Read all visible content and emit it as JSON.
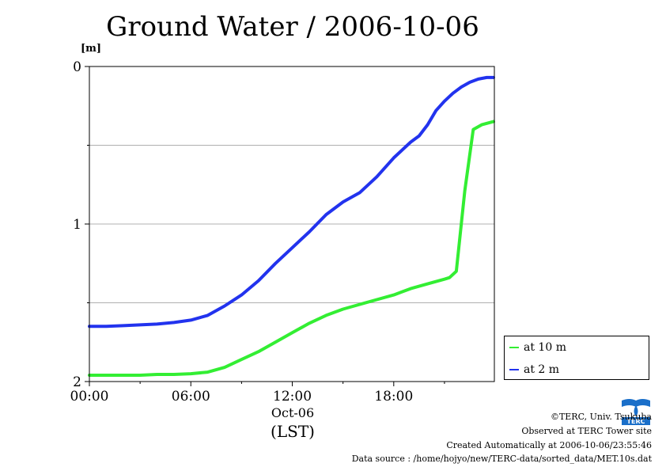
{
  "title": "Ground Water / 2006-10-06",
  "unit_label": "[m]",
  "x_date_label": "Oct-06",
  "x_tz_label": "(LST)",
  "footer": {
    "copyright": "©TERC, Univ. Tsukuba",
    "observed": "Observed at TERC Tower site",
    "created": "Created Automatically at 2006-10-06/23:55:46",
    "source": "Data source : /home/hojyo/new/TERC-data/sorted_data/MET.10s.dat"
  },
  "logo_text": "TERC",
  "chart_data": {
    "type": "line",
    "title": "Ground Water / 2006-10-06",
    "ylabel": "[m]",
    "xlabel": "(LST)",
    "xlim": [
      0,
      23.95
    ],
    "ylim": [
      2,
      0
    ],
    "y_inverted": true,
    "grid": true,
    "legend_position": "right",
    "x_ticks": [
      "00:00",
      "06:00",
      "12:00",
      "18:00"
    ],
    "y_ticks": [
      "0",
      "1",
      "2"
    ],
    "series": [
      {
        "name": "at 10 m",
        "color": "#33ee33",
        "x": [
          0,
          1,
          2,
          3,
          4,
          5,
          6,
          7,
          8,
          9,
          10,
          11,
          12,
          13,
          14,
          15,
          16,
          17,
          18,
          19,
          20,
          21,
          21.3,
          21.7,
          22.2,
          22.7,
          23.2,
          23.9
        ],
        "y": [
          1.96,
          1.96,
          1.96,
          1.96,
          1.955,
          1.955,
          1.95,
          1.94,
          1.91,
          1.86,
          1.81,
          1.75,
          1.69,
          1.63,
          1.58,
          1.54,
          1.51,
          1.48,
          1.45,
          1.41,
          1.38,
          1.35,
          1.34,
          1.3,
          0.79,
          0.4,
          0.37,
          0.35
        ]
      },
      {
        "name": "at 2 m",
        "color": "#2233ee",
        "x": [
          0,
          1,
          2,
          3,
          4,
          5,
          6,
          7,
          8,
          9,
          10,
          11,
          12,
          13,
          14,
          15,
          16,
          17,
          18,
          19,
          19.5,
          20,
          20.5,
          21,
          21.5,
          22,
          22.5,
          23,
          23.5,
          23.9
        ],
        "y": [
          1.65,
          1.65,
          1.645,
          1.64,
          1.635,
          1.625,
          1.61,
          1.58,
          1.52,
          1.45,
          1.36,
          1.25,
          1.15,
          1.05,
          0.94,
          0.86,
          0.8,
          0.7,
          0.58,
          0.48,
          0.44,
          0.37,
          0.28,
          0.22,
          0.17,
          0.13,
          0.1,
          0.08,
          0.07,
          0.07
        ]
      }
    ]
  }
}
